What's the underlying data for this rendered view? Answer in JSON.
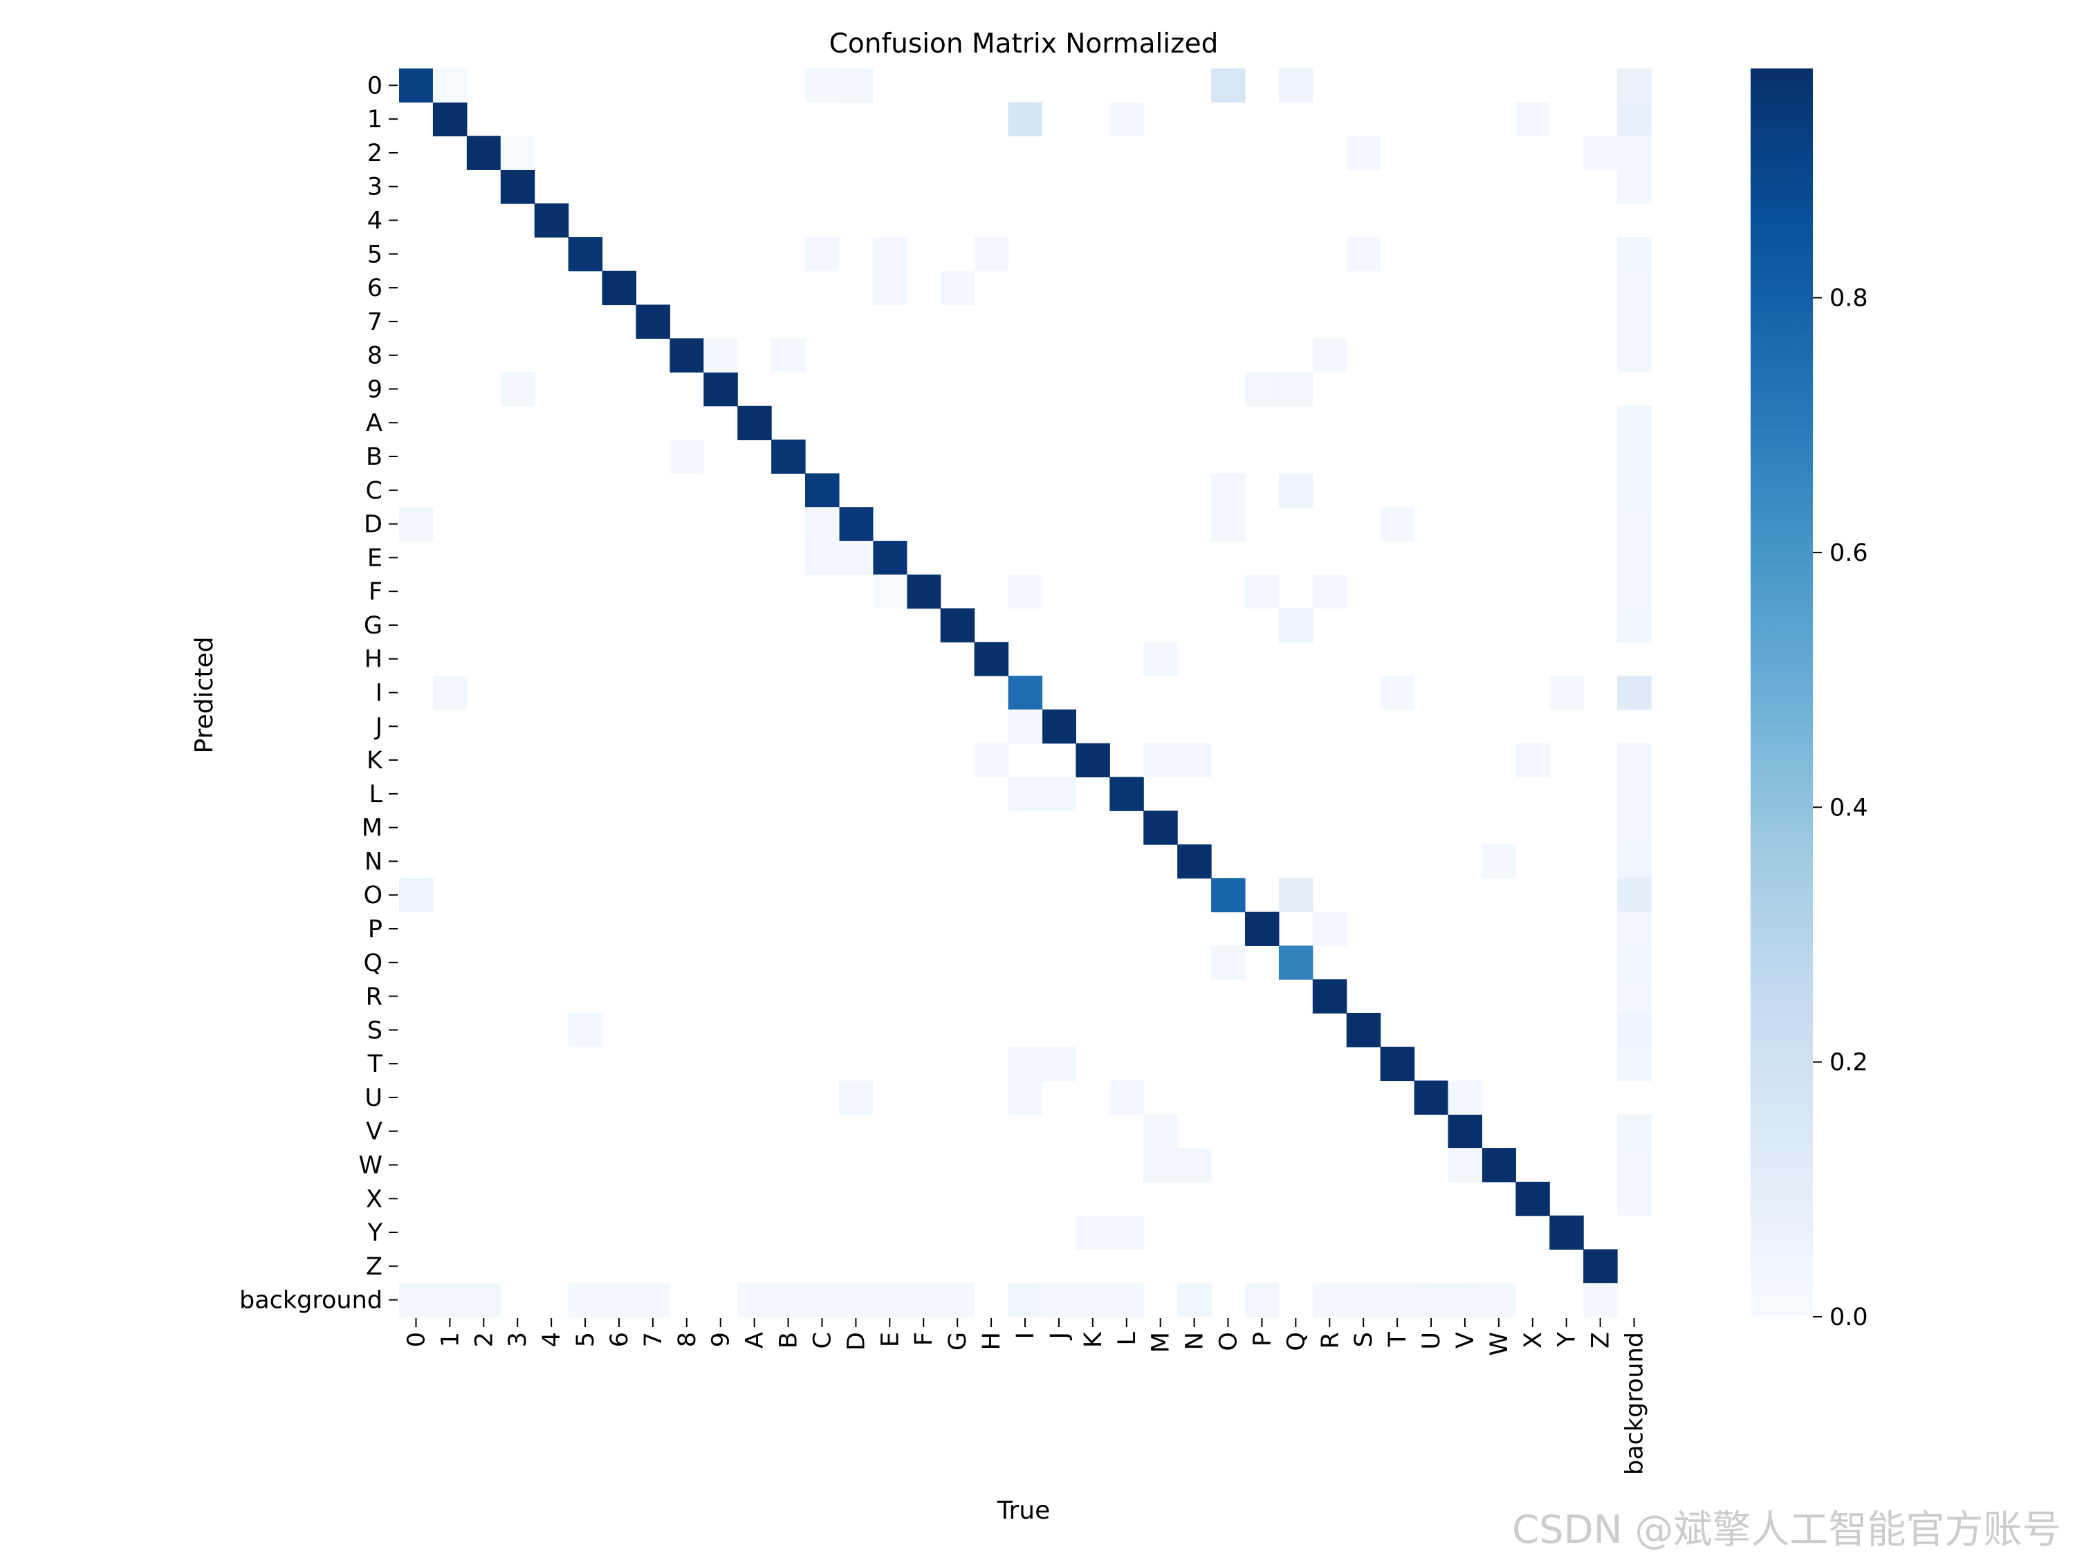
{
  "chart_data": {
    "type": "heatmap",
    "title": "Confusion Matrix Normalized",
    "xlabel": "True",
    "ylabel": "Predicted",
    "categories": [
      "0",
      "1",
      "2",
      "3",
      "4",
      "5",
      "6",
      "7",
      "8",
      "9",
      "A",
      "B",
      "C",
      "D",
      "E",
      "F",
      "G",
      "H",
      "I",
      "J",
      "K",
      "L",
      "M",
      "N",
      "O",
      "P",
      "Q",
      "R",
      "S",
      "T",
      "U",
      "V",
      "W",
      "X",
      "Y",
      "Z",
      "background"
    ],
    "colormap": "Blues",
    "vmin": 0,
    "vmax": 0.98,
    "colorbar_ticks": [
      "0.0",
      "0.2",
      "0.4",
      "0.6",
      "0.8"
    ],
    "colorbar_tick_values": [
      0,
      0.2,
      0.4,
      0.6,
      0.8
    ],
    "diagonal": [
      0.92,
      0.98,
      0.98,
      0.98,
      0.98,
      0.96,
      0.98,
      0.98,
      0.98,
      0.98,
      0.98,
      0.96,
      0.94,
      0.95,
      0.96,
      0.98,
      0.98,
      0.98,
      0.75,
      0.98,
      0.98,
      0.96,
      0.98,
      0.98,
      0.78,
      0.98,
      0.67,
      0.98,
      0.98,
      0.98,
      0.98,
      0.98,
      0.98,
      0.98,
      0.98,
      0.98,
      0
    ],
    "off_diagonal": [
      {
        "pred": "0",
        "true": "1",
        "value": 0.01
      },
      {
        "pred": "0",
        "true": "C",
        "value": 0.02
      },
      {
        "pred": "0",
        "true": "D",
        "value": 0.03
      },
      {
        "pred": "0",
        "true": "O",
        "value": 0.16
      },
      {
        "pred": "0",
        "true": "Q",
        "value": 0.05
      },
      {
        "pred": "0",
        "true": "background",
        "value": 0.07
      },
      {
        "pred": "1",
        "true": "I",
        "value": 0.17
      },
      {
        "pred": "1",
        "true": "L",
        "value": 0.02
      },
      {
        "pred": "1",
        "true": "X",
        "value": 0.02
      },
      {
        "pred": "1",
        "true": "background",
        "value": 0.08
      },
      {
        "pred": "2",
        "true": "3",
        "value": 0.01
      },
      {
        "pred": "2",
        "true": "S",
        "value": 0.02
      },
      {
        "pred": "2",
        "true": "Z",
        "value": 0.02
      },
      {
        "pred": "2",
        "true": "background",
        "value": 0.02
      },
      {
        "pred": "3",
        "true": "background",
        "value": 0.02
      },
      {
        "pred": "5",
        "true": "C",
        "value": 0.02
      },
      {
        "pred": "5",
        "true": "E",
        "value": 0.02
      },
      {
        "pred": "5",
        "true": "H",
        "value": 0.02
      },
      {
        "pred": "5",
        "true": "S",
        "value": 0.02
      },
      {
        "pred": "5",
        "true": "background",
        "value": 0.04
      },
      {
        "pred": "6",
        "true": "E",
        "value": 0.02
      },
      {
        "pred": "6",
        "true": "G",
        "value": 0.02
      },
      {
        "pred": "6",
        "true": "background",
        "value": 0.03
      },
      {
        "pred": "7",
        "true": "background",
        "value": 0.03
      },
      {
        "pred": "8",
        "true": "9",
        "value": 0.02
      },
      {
        "pred": "8",
        "true": "B",
        "value": 0.02
      },
      {
        "pred": "8",
        "true": "R",
        "value": 0.02
      },
      {
        "pred": "8",
        "true": "background",
        "value": 0.03
      },
      {
        "pred": "9",
        "true": "3",
        "value": 0.02
      },
      {
        "pred": "9",
        "true": "P",
        "value": 0.03
      },
      {
        "pred": "9",
        "true": "Q",
        "value": 0.03
      },
      {
        "pred": "A",
        "true": "background",
        "value": 0.04
      },
      {
        "pred": "B",
        "true": "8",
        "value": 0.02
      },
      {
        "pred": "B",
        "true": "background",
        "value": 0.04
      },
      {
        "pred": "C",
        "true": "O",
        "value": 0.03
      },
      {
        "pred": "C",
        "true": "Q",
        "value": 0.05
      },
      {
        "pred": "C",
        "true": "background",
        "value": 0.04
      },
      {
        "pred": "D",
        "true": "0",
        "value": 0.03
      },
      {
        "pred": "D",
        "true": "C",
        "value": 0.02
      },
      {
        "pred": "D",
        "true": "O",
        "value": 0.03
      },
      {
        "pred": "D",
        "true": "T",
        "value": 0.02
      },
      {
        "pred": "D",
        "true": "background",
        "value": 0.03
      },
      {
        "pred": "E",
        "true": "C",
        "value": 0.03
      },
      {
        "pred": "E",
        "true": "D",
        "value": 0.02
      },
      {
        "pred": "E",
        "true": "background",
        "value": 0.03
      },
      {
        "pred": "F",
        "true": "E",
        "value": 0.01
      },
      {
        "pred": "F",
        "true": "I",
        "value": 0.02
      },
      {
        "pred": "F",
        "true": "P",
        "value": 0.02
      },
      {
        "pred": "F",
        "true": "R",
        "value": 0.02
      },
      {
        "pred": "F",
        "true": "background",
        "value": 0.03
      },
      {
        "pred": "G",
        "true": "Q",
        "value": 0.06
      },
      {
        "pred": "G",
        "true": "background",
        "value": 0.04
      },
      {
        "pred": "H",
        "true": "M",
        "value": 0.02
      },
      {
        "pred": "I",
        "true": "1",
        "value": 0.03
      },
      {
        "pred": "I",
        "true": "T",
        "value": 0.02
      },
      {
        "pred": "I",
        "true": "Y",
        "value": 0.02
      },
      {
        "pred": "I",
        "true": "background",
        "value": 0.12
      },
      {
        "pred": "J",
        "true": "I",
        "value": 0.03
      },
      {
        "pred": "K",
        "true": "H",
        "value": 0.02
      },
      {
        "pred": "K",
        "true": "M",
        "value": 0.03
      },
      {
        "pred": "K",
        "true": "N",
        "value": 0.03
      },
      {
        "pred": "K",
        "true": "X",
        "value": 0.03
      },
      {
        "pred": "K",
        "true": "background",
        "value": 0.03
      },
      {
        "pred": "L",
        "true": "I",
        "value": 0.03
      },
      {
        "pred": "L",
        "true": "J",
        "value": 0.03
      },
      {
        "pred": "L",
        "true": "background",
        "value": 0.03
      },
      {
        "pred": "M",
        "true": "background",
        "value": 0.03
      },
      {
        "pred": "N",
        "true": "W",
        "value": 0.02
      },
      {
        "pred": "N",
        "true": "background",
        "value": 0.04
      },
      {
        "pred": "O",
        "true": "0",
        "value": 0.06
      },
      {
        "pred": "O",
        "true": "Q",
        "value": 0.1
      },
      {
        "pred": "O",
        "true": "background",
        "value": 0.09
      },
      {
        "pred": "P",
        "true": "R",
        "value": 0.02
      },
      {
        "pred": "P",
        "true": "background",
        "value": 0.03
      },
      {
        "pred": "Q",
        "true": "O",
        "value": 0.03
      },
      {
        "pred": "Q",
        "true": "background",
        "value": 0.04
      },
      {
        "pred": "R",
        "true": "background",
        "value": 0.03
      },
      {
        "pred": "S",
        "true": "5",
        "value": 0.02
      },
      {
        "pred": "S",
        "true": "background",
        "value": 0.05
      },
      {
        "pred": "T",
        "true": "I",
        "value": 0.03
      },
      {
        "pred": "T",
        "true": "J",
        "value": 0.03
      },
      {
        "pred": "T",
        "true": "background",
        "value": 0.04
      },
      {
        "pred": "U",
        "true": "D",
        "value": 0.03
      },
      {
        "pred": "U",
        "true": "I",
        "value": 0.03
      },
      {
        "pred": "U",
        "true": "L",
        "value": 0.02
      },
      {
        "pred": "U",
        "true": "V",
        "value": 0.02
      },
      {
        "pred": "V",
        "true": "M",
        "value": 0.02
      },
      {
        "pred": "V",
        "true": "background",
        "value": 0.04
      },
      {
        "pred": "W",
        "true": "M",
        "value": 0.03
      },
      {
        "pred": "W",
        "true": "N",
        "value": 0.03
      },
      {
        "pred": "W",
        "true": "V",
        "value": 0.03
      },
      {
        "pred": "W",
        "true": "background",
        "value": 0.03
      },
      {
        "pred": "X",
        "true": "background",
        "value": 0.02
      },
      {
        "pred": "Y",
        "true": "K",
        "value": 0.03
      },
      {
        "pred": "Y",
        "true": "L",
        "value": 0.03
      },
      {
        "pred": "background",
        "true": "0",
        "value": 0.03
      },
      {
        "pred": "background",
        "true": "1",
        "value": 0.03
      },
      {
        "pred": "background",
        "true": "2",
        "value": 0.03
      },
      {
        "pred": "background",
        "true": "5",
        "value": 0.02
      },
      {
        "pred": "background",
        "true": "6",
        "value": 0.02
      },
      {
        "pred": "background",
        "true": "7",
        "value": 0.02
      },
      {
        "pred": "background",
        "true": "A",
        "value": 0.02
      },
      {
        "pred": "background",
        "true": "B",
        "value": 0.02
      },
      {
        "pred": "background",
        "true": "C",
        "value": 0.02
      },
      {
        "pred": "background",
        "true": "D",
        "value": 0.02
      },
      {
        "pred": "background",
        "true": "E",
        "value": 0.02
      },
      {
        "pred": "background",
        "true": "F",
        "value": 0.02
      },
      {
        "pred": "background",
        "true": "G",
        "value": 0.02
      },
      {
        "pred": "background",
        "true": "I",
        "value": 0.04
      },
      {
        "pred": "background",
        "true": "J",
        "value": 0.02
      },
      {
        "pred": "background",
        "true": "K",
        "value": 0.02
      },
      {
        "pred": "background",
        "true": "L",
        "value": 0.02
      },
      {
        "pred": "background",
        "true": "N",
        "value": 0.04
      },
      {
        "pred": "background",
        "true": "P",
        "value": 0.03
      },
      {
        "pred": "background",
        "true": "R",
        "value": 0.02
      },
      {
        "pred": "background",
        "true": "S",
        "value": 0.02
      },
      {
        "pred": "background",
        "true": "T",
        "value": 0.02
      },
      {
        "pred": "background",
        "true": "U",
        "value": 0.03
      },
      {
        "pred": "background",
        "true": "V",
        "value": 0.03
      },
      {
        "pred": "background",
        "true": "W",
        "value": 0.02
      },
      {
        "pred": "background",
        "true": "Z",
        "value": 0.02
      }
    ]
  },
  "watermark": "CSDN @斌擎人工智能官方账号"
}
